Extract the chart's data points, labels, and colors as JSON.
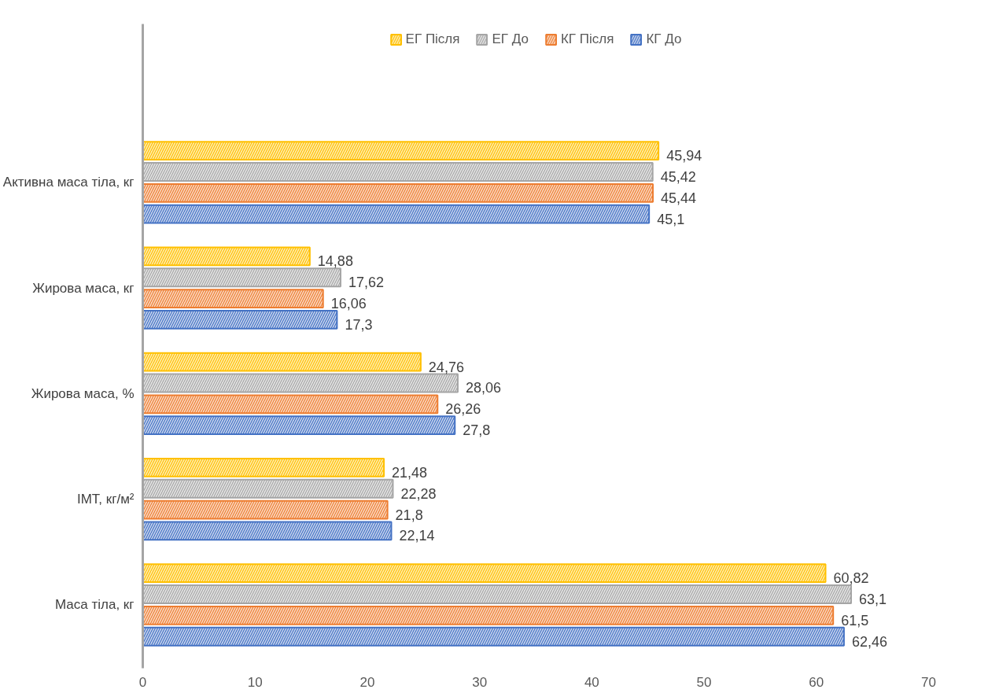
{
  "chart_data": {
    "type": "bar",
    "orientation": "horizontal",
    "categories": [
      "Активна маса тіла, кг",
      "Жирова маса, кг",
      "Жирова маса, %",
      "ІМТ, кг/м²",
      "Маса тіла, кг"
    ],
    "series": [
      {
        "name": "ЕГ Після",
        "color": "#ffc000",
        "values": [
          45.94,
          14.88,
          24.76,
          21.48,
          60.82
        ],
        "value_labels": [
          "45,94",
          "14,88",
          "24,76",
          "21,48",
          "60,82"
        ]
      },
      {
        "name": "ЕГ До",
        "color": "#a5a5a5",
        "values": [
          45.42,
          17.62,
          28.06,
          22.28,
          63.1
        ],
        "value_labels": [
          "45,42",
          "17,62",
          "28,06",
          "22,28",
          "63,1"
        ]
      },
      {
        "name": "КГ Після",
        "color": "#ed7d31",
        "values": [
          45.44,
          16.06,
          26.26,
          21.8,
          61.5
        ],
        "value_labels": [
          "45,44",
          "16,06",
          "26,26",
          "21,8",
          "61,5"
        ]
      },
      {
        "name": "КГ До",
        "color": "#4472c4",
        "values": [
          45.1,
          17.3,
          27.8,
          22.14,
          62.46
        ],
        "value_labels": [
          "45,1",
          "17,3",
          "27,8",
          "22,14",
          "62,46"
        ]
      }
    ],
    "xlim": [
      0,
      70
    ],
    "xticks": [
      0,
      10,
      20,
      30,
      40,
      50,
      60,
      70
    ],
    "grid": false,
    "legend": "top"
  }
}
